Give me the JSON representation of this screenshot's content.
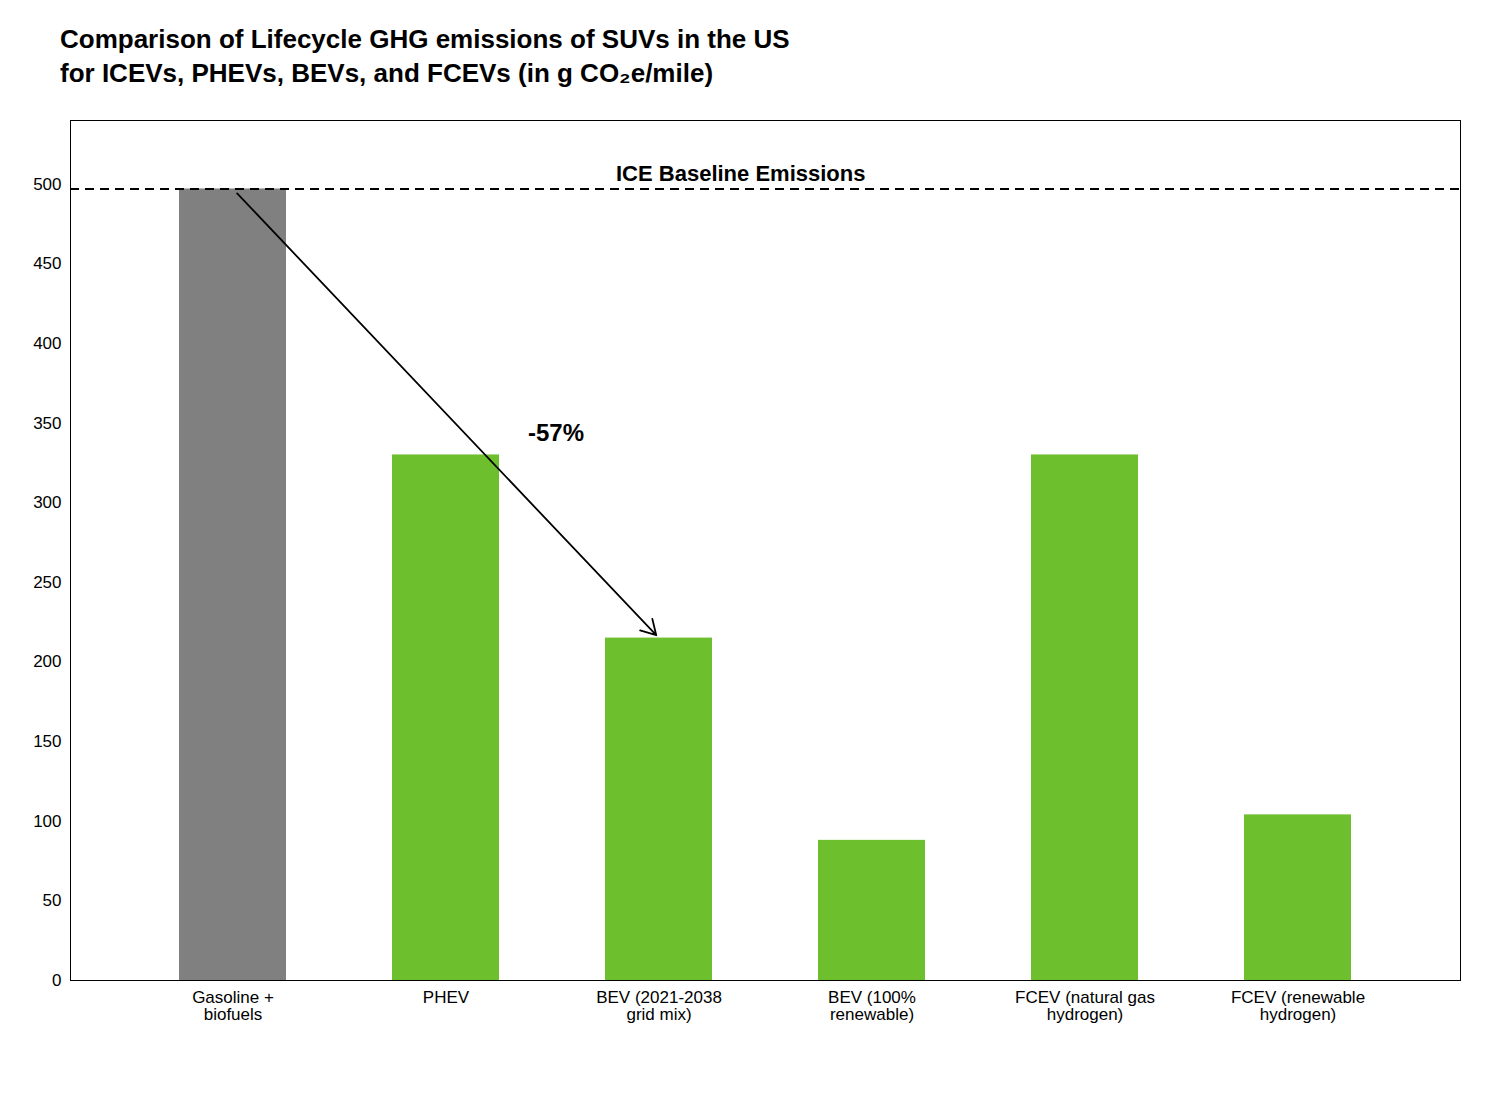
{
  "chart_data": {
    "type": "bar",
    "title": "Comparison of Lifecycle GHG emissions of SUVs in the US",
    "subtitle": "for ICEVs, PHEVs, BEVs, and FCEVs (in g CO₂e/mile)",
    "categories": [
      "Gasoline +\nbiofuels",
      "PHEV",
      "BEV (2021-2038\ngrid mix)",
      "BEV (100%\nrenewable)",
      "FCEV (natural gas\nhydrogen)",
      "FCEV (renewable\nhydrogen)"
    ],
    "values": [
      497,
      330,
      215,
      88,
      330,
      104
    ],
    "colors": [
      "#808080",
      "#6dbf2e",
      "#6dbf2e",
      "#6dbf2e",
      "#6dbf2e",
      "#6dbf2e"
    ],
    "ylim": [
      0,
      540
    ],
    "yticks": [
      0,
      50,
      100,
      150,
      200,
      250,
      300,
      350,
      400,
      450,
      500
    ],
    "grid": false,
    "reference_lines": [
      {
        "value": 497,
        "label": "ICE Baseline Emissions",
        "line_style": "dashed"
      }
    ],
    "annotations": [
      {
        "text": "-57%",
        "from": "Gasoline +\nbiofuels",
        "to": "BEV (2021-2038\ngrid mix)"
      }
    ]
  }
}
